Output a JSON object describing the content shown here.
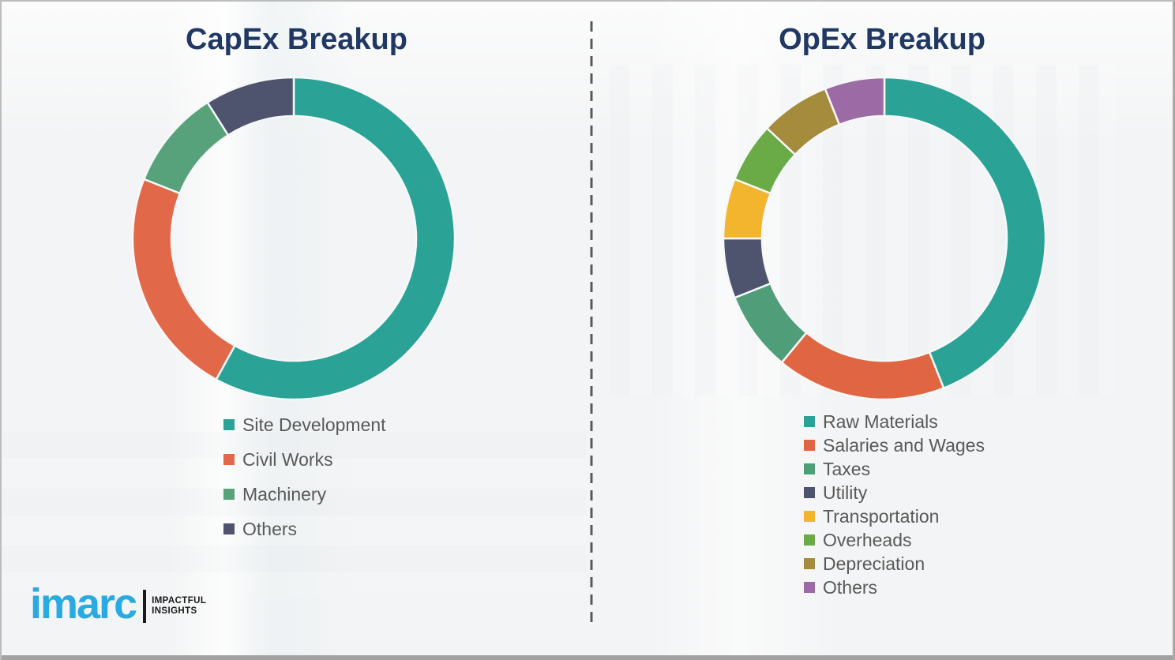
{
  "page": {
    "background_color": "#f3f4f5",
    "divider_color": "#595959",
    "title_color": "#1f3864",
    "legend_text_color": "#595959"
  },
  "chart_data": [
    {
      "type": "pie",
      "subtype": "donut",
      "title": "CapEx Breakup",
      "categories": [
        "Site Development",
        "Civil Works",
        "Machinery",
        "Others"
      ],
      "values": [
        58,
        23,
        10,
        9
      ],
      "unit": "percent-estimated",
      "colors": [
        "#2aa396",
        "#e2684a",
        "#58a27b",
        "#4e546e"
      ],
      "start_angle_deg": 0,
      "direction": "clockwise",
      "legend_position": "below-left",
      "data_labels_shown": false
    },
    {
      "type": "pie",
      "subtype": "donut",
      "title": "OpEx Breakup",
      "categories": [
        "Raw Materials",
        "Salaries and Wages",
        "Taxes",
        "Utility",
        "Transportation",
        "Overheads",
        "Depreciation",
        "Others"
      ],
      "values": [
        44,
        17,
        8,
        6,
        6,
        6,
        7,
        6
      ],
      "unit": "percent-estimated",
      "colors": [
        "#2aa396",
        "#e06542",
        "#4f9d79",
        "#4e546e",
        "#f2b52d",
        "#6aab47",
        "#a58b3c",
        "#9c6ba5"
      ],
      "start_angle_deg": 0,
      "direction": "clockwise",
      "legend_position": "below-left",
      "data_labels_shown": false
    }
  ],
  "branding": {
    "logo_text": "imarc",
    "tagline_line1": "IMPACTFUL",
    "tagline_line2": "INSIGHTS",
    "logo_color": "#29aae1",
    "tagline_color": "#1a1a1a"
  }
}
